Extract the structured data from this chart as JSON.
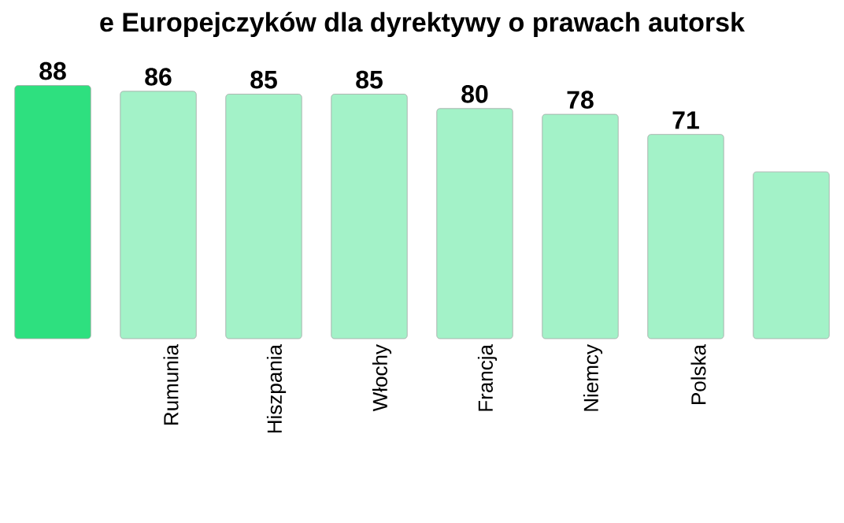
{
  "chart_data": {
    "type": "bar",
    "title": "e Europejczyków dla dyrektywy o prawach autorsk",
    "categories": [
      null,
      "Rumunia",
      "Hiszpania",
      "Włochy",
      "Francja",
      "Niemcy",
      "Polska",
      null
    ],
    "values": [
      88,
      86,
      85,
      85,
      80,
      78,
      71,
      58
    ],
    "colors": [
      "#2ee07f",
      "#a3f2c8",
      "#a3f2c8",
      "#a3f2c8",
      "#a3f2c8",
      "#a3f2c8",
      "#a3f2c8",
      "#a3f2c8"
    ],
    "value_labels": [
      "88",
      "86",
      "85",
      "85",
      "80",
      "78",
      "71",
      null
    ]
  }
}
